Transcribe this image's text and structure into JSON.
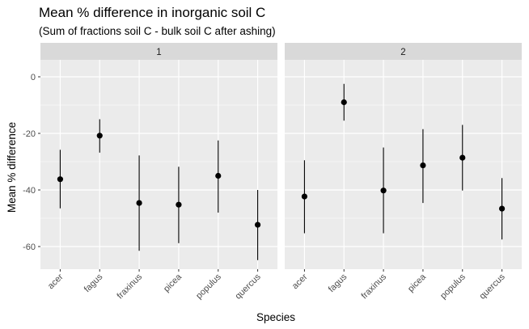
{
  "chart_data": {
    "type": "scatter",
    "title": "Mean % difference in inorganic soil C",
    "subtitle": "(Sum of fractions soil C - bulk soil C after ashing)",
    "xlabel": "Species",
    "ylabel": "Mean % difference",
    "ylim": [
      -68,
      6
    ],
    "yticks": [
      0,
      -20,
      -40,
      -60
    ],
    "ytick_labels": [
      "0",
      "-20",
      "-40",
      "-60"
    ],
    "grid": true,
    "categories": [
      "acer",
      "fagus",
      "fraxinus",
      "picea",
      "populus",
      "quercus"
    ],
    "facets": [
      {
        "label": "1",
        "points": [
          {
            "category": "acer",
            "mean": -36.2,
            "low": -46.5,
            "high": -25.8
          },
          {
            "category": "fagus",
            "mean": -20.8,
            "low": -26.8,
            "high": -15.0
          },
          {
            "category": "fraxinus",
            "mean": -44.6,
            "low": -61.5,
            "high": -27.8
          },
          {
            "category": "picea",
            "mean": -45.2,
            "low": -58.8,
            "high": -31.8
          },
          {
            "category": "populus",
            "mean": -35.0,
            "low": -48.0,
            "high": -22.5
          },
          {
            "category": "quercus",
            "mean": -52.3,
            "low": -64.8,
            "high": -40.0
          }
        ]
      },
      {
        "label": "2",
        "points": [
          {
            "category": "acer",
            "mean": -42.3,
            "low": -55.3,
            "high": -29.5
          },
          {
            "category": "fagus",
            "mean": -9.0,
            "low": -15.5,
            "high": -2.5
          },
          {
            "category": "fraxinus",
            "mean": -40.2,
            "low": -55.3,
            "high": -25.0
          },
          {
            "category": "picea",
            "mean": -31.3,
            "low": -44.6,
            "high": -18.5
          },
          {
            "category": "populus",
            "mean": -28.6,
            "low": -40.2,
            "high": -17.0
          },
          {
            "category": "quercus",
            "mean": -46.6,
            "low": -57.5,
            "high": -35.8
          }
        ]
      }
    ]
  },
  "colors": {
    "panel_background": "#ebebeb",
    "strip_background": "#d9d9d9",
    "gridline": "#ffffff",
    "point": "#000000"
  }
}
